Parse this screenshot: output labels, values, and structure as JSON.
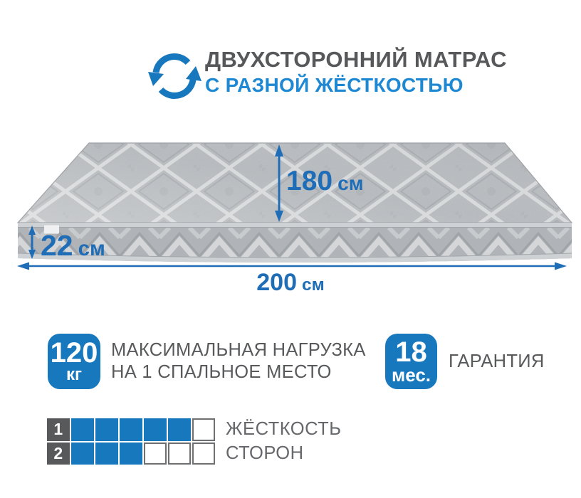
{
  "header": {
    "icon": "two-sided-rotation-icon",
    "title": "ДВУХСТОРОННИЙ МАТРАС",
    "subtitle": "С РАЗНОЙ ЖЁСТКОСТЬЮ"
  },
  "dimensions": {
    "length": {
      "value": "180",
      "unit": "см"
    },
    "thickness": {
      "value": "22",
      "unit": "см"
    },
    "width": {
      "value": "200",
      "unit": "см"
    }
  },
  "features": [
    {
      "badge_value": "120",
      "badge_unit": "кг",
      "label_line1": "МАКСИМАЛЬНАЯ НАГРУЗКА",
      "label_line2": "НА 1 СПАЛЬНОЕ МЕСТО"
    },
    {
      "badge_value": "18",
      "badge_unit": "мес.",
      "label_line1": "ГАРАНТИЯ",
      "label_line2": ""
    }
  ],
  "ratings": {
    "rows": [
      {
        "index": "1",
        "filled": 5,
        "total": 6,
        "label": "ЖЁСТКОСТЬ"
      },
      {
        "index": "2",
        "filled": 3,
        "total": 6,
        "label": "СТОРОН"
      }
    ]
  },
  "colors": {
    "accent_blue": "#1878be",
    "subtitle_blue": "#1e88d3",
    "dimension_blue": "#1e6db6",
    "title_gray": "#57585a",
    "mattress_top": "#c1c4c7",
    "mattress_side": "#b3b7ba",
    "binding_tape": "#ced1d3"
  }
}
